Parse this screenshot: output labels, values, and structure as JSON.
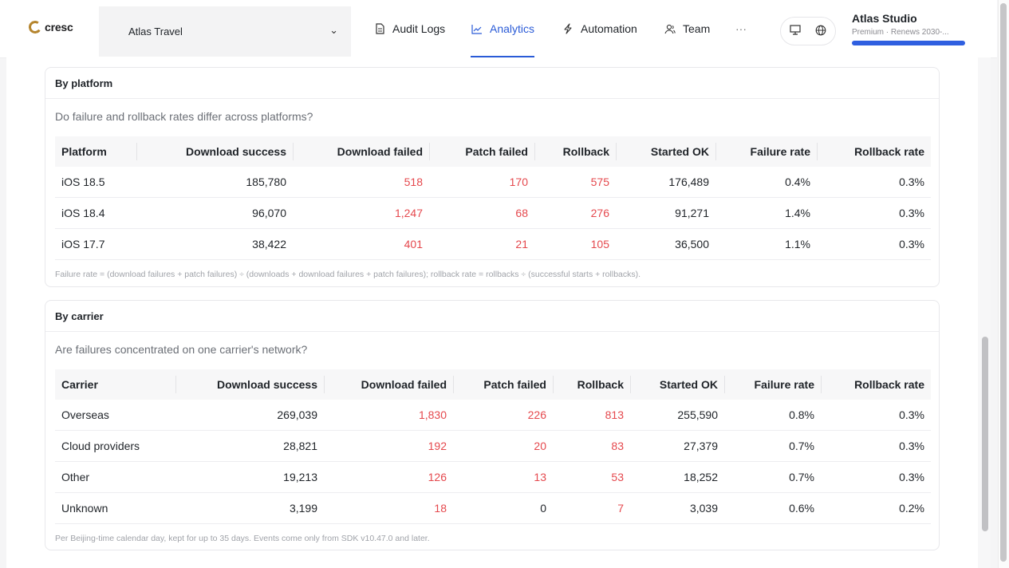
{
  "brand": {
    "name": "cresc",
    "accent": "#b5852e"
  },
  "app_selector": {
    "icon": "apple-icon",
    "name": "Atlas Travel"
  },
  "nav": {
    "audit_logs": "Audit Logs",
    "analytics": "Analytics",
    "automation": "Automation",
    "team": "Team",
    "more": "···",
    "active": "Analytics",
    "active_color": "#2a5bd7"
  },
  "org": {
    "name": "Atlas Studio",
    "plan": "Premium · Renews 2030-..."
  },
  "platform_card": {
    "title": "By platform",
    "question": "Do failure and rollback rates differ across platforms?",
    "columns": [
      "Platform",
      "Download success",
      "Download failed",
      "Patch failed",
      "Rollback",
      "Started OK",
      "Failure rate",
      "Rollback rate"
    ],
    "rows": [
      [
        "iOS 18.5",
        "185,780",
        "518",
        "170",
        "575",
        "176,489",
        "0.4%",
        "0.3%"
      ],
      [
        "iOS 18.4",
        "96,070",
        "1,247",
        "68",
        "276",
        "91,271",
        "1.4%",
        "0.3%"
      ],
      [
        "iOS 17.7",
        "38,422",
        "401",
        "21",
        "105",
        "36,500",
        "1.1%",
        "0.3%"
      ]
    ],
    "note": "Failure rate = (download failures + patch failures) ÷ (downloads + download failures + patch failures); rollback rate = rollbacks ÷ (successful starts + rollbacks)."
  },
  "carrier_card": {
    "title": "By carrier",
    "question": "Are failures concentrated on one carrier's network?",
    "columns": [
      "Carrier",
      "Download success",
      "Download failed",
      "Patch failed",
      "Rollback",
      "Started OK",
      "Failure rate",
      "Rollback rate"
    ],
    "rows": [
      [
        "Overseas",
        "269,039",
        "1,830",
        "226",
        "813",
        "255,590",
        "0.8%",
        "0.3%"
      ],
      [
        "Cloud providers",
        "28,821",
        "192",
        "20",
        "83",
        "27,379",
        "0.7%",
        "0.3%"
      ],
      [
        "Other",
        "19,213",
        "126",
        "13",
        "53",
        "18,252",
        "0.7%",
        "0.3%"
      ],
      [
        "Unknown",
        "3,199",
        "18",
        "0",
        "7",
        "3,039",
        "0.6%",
        "0.2%"
      ]
    ],
    "note": "Per Beijing-time calendar day, kept for up to 35 days. Events come only from SDK v10.47.0 and later."
  },
  "colors": {
    "negative": "#e5484d"
  }
}
